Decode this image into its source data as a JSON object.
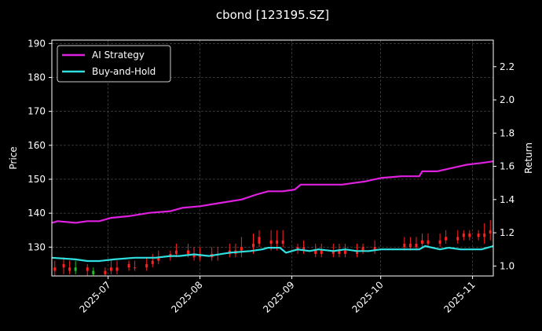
{
  "chart_data": {
    "type": "line",
    "title": "cbond [123195.SZ]",
    "xlabel": "",
    "ylabel": "Price",
    "y2label": "Return",
    "x_range": [
      "2025-06-12",
      "2025-11-08"
    ],
    "ylim": [
      121.5,
      191
    ],
    "y2lim": [
      0.94,
      2.36
    ],
    "yticks": [
      130,
      140,
      150,
      160,
      170,
      180,
      190
    ],
    "y2ticks": [
      "1.0",
      "1.2",
      "1.4",
      "1.6",
      "1.8",
      "2.0",
      "2.2"
    ],
    "y2tick_values": [
      1.0,
      1.2,
      1.4,
      1.6,
      1.8,
      2.0,
      2.2
    ],
    "xticks": [
      {
        "date": "2025-07-01",
        "label": "2025-07"
      },
      {
        "date": "2025-08-01",
        "label": "2025-08"
      },
      {
        "date": "2025-09-01",
        "label": "2025-09"
      },
      {
        "date": "2025-10-01",
        "label": "2025-10"
      },
      {
        "date": "2025-11-01",
        "label": "2025-11"
      }
    ],
    "grid": true,
    "legend_placement": "top-left",
    "colors": {
      "background": "#000000",
      "grid": "#555555",
      "ai_strategy": "#e020e0",
      "buy_and_hold": "#30e0e0",
      "candle_up": "#ff2020",
      "candle_down": "#20c020"
    },
    "series": [
      {
        "name": "AI Strategy",
        "axis": "return",
        "x": [
          "2025-06-12",
          "2025-06-14",
          "2025-06-20",
          "2025-06-24",
          "2025-06-28",
          "2025-07-02",
          "2025-07-08",
          "2025-07-15",
          "2025-07-22",
          "2025-07-26",
          "2025-08-01",
          "2025-08-08",
          "2025-08-15",
          "2025-08-20",
          "2025-08-24",
          "2025-08-29",
          "2025-09-02",
          "2025-09-04",
          "2025-09-10",
          "2025-09-18",
          "2025-09-22",
          "2025-09-26",
          "2025-10-01",
          "2025-10-08",
          "2025-10-14",
          "2025-10-15",
          "2025-10-20",
          "2025-10-25",
          "2025-10-30",
          "2025-11-04",
          "2025-11-08"
        ],
        "values": [
          1.26,
          1.27,
          1.26,
          1.27,
          1.27,
          1.29,
          1.3,
          1.32,
          1.33,
          1.35,
          1.36,
          1.38,
          1.4,
          1.43,
          1.45,
          1.45,
          1.46,
          1.49,
          1.49,
          1.49,
          1.5,
          1.51,
          1.53,
          1.54,
          1.54,
          1.57,
          1.57,
          1.59,
          1.61,
          1.62,
          1.63
        ]
      },
      {
        "name": "Buy-and-Hold",
        "axis": "return",
        "x": [
          "2025-06-12",
          "2025-06-20",
          "2025-06-24",
          "2025-06-28",
          "2025-07-03",
          "2025-07-10",
          "2025-07-17",
          "2025-07-22",
          "2025-07-25",
          "2025-07-30",
          "2025-08-04",
          "2025-08-11",
          "2025-08-18",
          "2025-08-22",
          "2025-08-24",
          "2025-08-28",
          "2025-08-30",
          "2025-09-03",
          "2025-09-07",
          "2025-09-10",
          "2025-09-15",
          "2025-09-19",
          "2025-09-23",
          "2025-09-27",
          "2025-10-01",
          "2025-10-14",
          "2025-10-16",
          "2025-10-21",
          "2025-10-24",
          "2025-10-28",
          "2025-11-02",
          "2025-11-04",
          "2025-11-08"
        ],
        "values": [
          1.05,
          1.04,
          1.03,
          1.03,
          1.04,
          1.05,
          1.05,
          1.06,
          1.06,
          1.07,
          1.06,
          1.08,
          1.09,
          1.1,
          1.11,
          1.11,
          1.08,
          1.1,
          1.09,
          1.1,
          1.09,
          1.1,
          1.09,
          1.09,
          1.1,
          1.1,
          1.12,
          1.1,
          1.11,
          1.1,
          1.1,
          1.1,
          1.12
        ]
      }
    ],
    "candles": {
      "axis": "price",
      "x": [
        "2025-06-13",
        "2025-06-16",
        "2025-06-18",
        "2025-06-20",
        "2025-06-24",
        "2025-06-26",
        "2025-06-30",
        "2025-07-02",
        "2025-07-04",
        "2025-07-08",
        "2025-07-10",
        "2025-07-14",
        "2025-07-16",
        "2025-07-18",
        "2025-07-22",
        "2025-07-24",
        "2025-07-28",
        "2025-07-30",
        "2025-08-01",
        "2025-08-05",
        "2025-08-07",
        "2025-08-11",
        "2025-08-13",
        "2025-08-15",
        "2025-08-19",
        "2025-08-21",
        "2025-08-25",
        "2025-08-27",
        "2025-08-29",
        "2025-09-03",
        "2025-09-05",
        "2025-09-09",
        "2025-09-11",
        "2025-09-15",
        "2025-09-17",
        "2025-09-19",
        "2025-09-23",
        "2025-09-25",
        "2025-09-29",
        "2025-10-09",
        "2025-10-11",
        "2025-10-13",
        "2025-10-15",
        "2025-10-17",
        "2025-10-21",
        "2025-10-23",
        "2025-10-27",
        "2025-10-29",
        "2025-10-31",
        "2025-11-03",
        "2025-11-05",
        "2025-11-07"
      ],
      "open": [
        123,
        124,
        123,
        124,
        123,
        123,
        122,
        123,
        123,
        124,
        124,
        124,
        125,
        126,
        127,
        128,
        128,
        127,
        127,
        127,
        128,
        128,
        128,
        129,
        130,
        131,
        131,
        131,
        131,
        129,
        129,
        128,
        128,
        128,
        128,
        128,
        128,
        129,
        129,
        130,
        130,
        130,
        131,
        131,
        131,
        132,
        132,
        133,
        133,
        133,
        133,
        134
      ],
      "close": [
        124,
        125,
        124,
        123,
        124,
        122,
        123,
        124,
        124,
        125,
        124,
        125,
        126,
        127,
        128,
        129,
        129,
        128,
        128,
        128,
        128,
        129,
        129,
        130,
        131,
        133,
        132,
        132,
        132,
        130,
        130,
        129,
        129,
        129,
        129,
        129,
        129,
        130,
        130,
        131,
        131,
        131,
        132,
        132,
        132,
        133,
        133,
        134,
        134,
        134,
        134,
        135
      ],
      "high": [
        126,
        127,
        126,
        126,
        125,
        124,
        124,
        126,
        126,
        126,
        126,
        127,
        128,
        129,
        129,
        131,
        131,
        130,
        130,
        130,
        130,
        131,
        131,
        133,
        134,
        135,
        135,
        135,
        135,
        131,
        132,
        131,
        131,
        131,
        131,
        131,
        131,
        131,
        132,
        133,
        133,
        133,
        134,
        134,
        134,
        135,
        135,
        135,
        135,
        135,
        137,
        138
      ],
      "low": [
        121.5,
        122,
        122,
        122,
        121.5,
        121.5,
        121.5,
        122,
        122,
        123,
        123,
        123,
        124,
        125,
        126,
        127,
        127,
        126,
        126,
        126,
        126,
        127,
        127,
        127,
        128,
        130,
        129,
        129,
        130,
        128,
        128,
        127,
        127,
        127,
        127,
        127,
        127,
        128,
        128,
        129,
        129,
        129,
        130,
        130,
        130,
        131,
        131,
        132,
        132,
        132,
        131,
        132
      ]
    }
  }
}
